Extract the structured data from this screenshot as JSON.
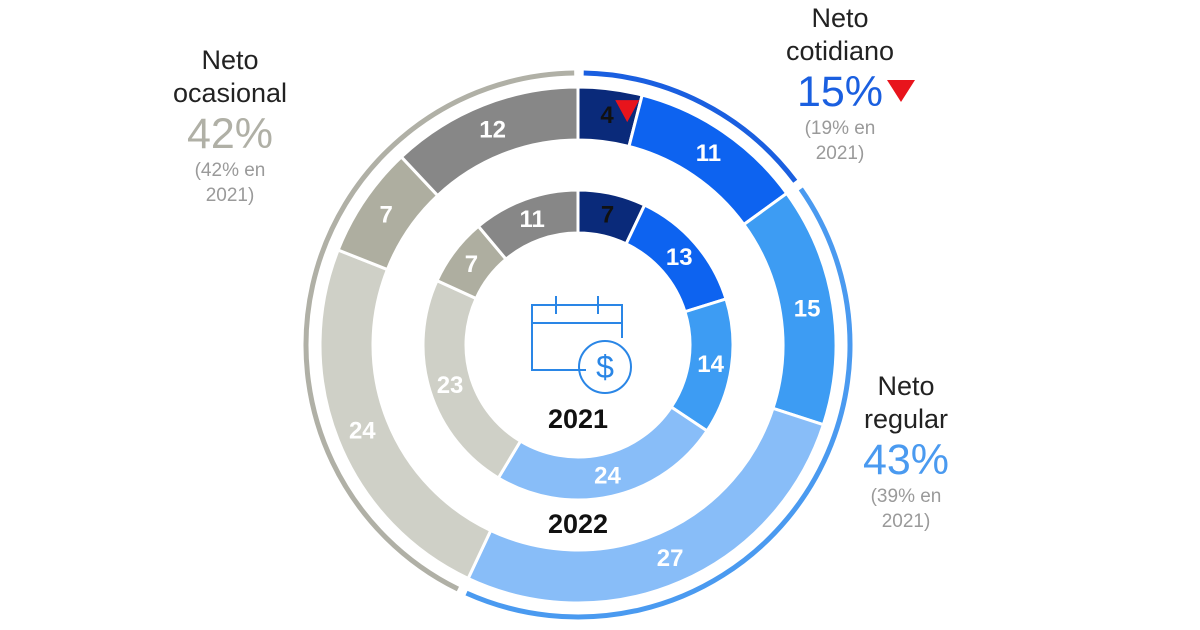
{
  "chart_data": {
    "type": "donut",
    "series": [
      {
        "name": "2022",
        "values": [
          4,
          11,
          15,
          27,
          24,
          7,
          12
        ]
      },
      {
        "name": "2021",
        "values": [
          7,
          13,
          14,
          24,
          23,
          7,
          11
        ]
      }
    ],
    "colors": [
      "#0a2a7a",
      "#0d63f0",
      "#3d9cf3",
      "#88bdf8",
      "#cfd0c7",
      "#aeaea0",
      "#878787"
    ],
    "center_labels": [
      "2021",
      "2022"
    ],
    "groups": [
      {
        "title_lines": [
          "Neto",
          "ocasional"
        ],
        "pct": "42%",
        "prev_lines": [
          "(42% en",
          "2021)"
        ],
        "color": "#b0b0a6",
        "trend": "none"
      },
      {
        "title_lines": [
          "Neto",
          "cotidiano"
        ],
        "pct": "15%",
        "prev_lines": [
          "(19% en",
          "2021)"
        ],
        "color": "#1a5fe0",
        "trend": "down"
      },
      {
        "title_lines": [
          "Neto",
          "regular"
        ],
        "pct": "43%",
        "prev_lines": [
          "(39% en",
          "2021)"
        ],
        "color": "#4a9af0",
        "trend": "none"
      }
    ],
    "markers": {
      "down_triangle_color": "#e8141c"
    },
    "icon": "calendar-dollar-icon"
  }
}
